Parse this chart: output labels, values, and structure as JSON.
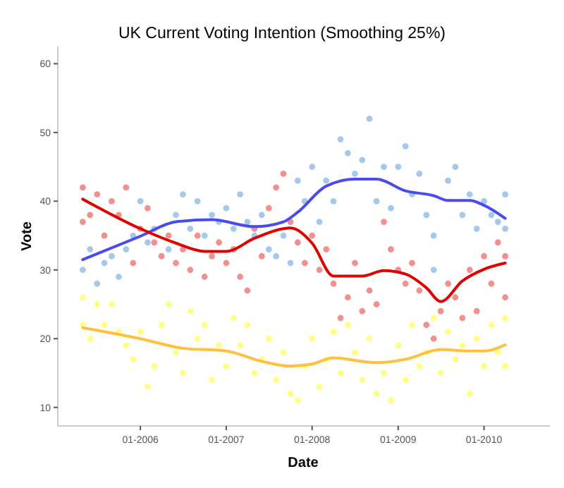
{
  "chart_data": {
    "type": "scatter",
    "title": "UK Current Voting Intention (Smoothing 25%)",
    "xlabel": "Date",
    "ylabel": "Vote",
    "xlim": [
      "2005-01-15",
      "2010-10-08"
    ],
    "ylim": [
      7.3,
      62.5
    ],
    "yticks": [
      10,
      20,
      30,
      40,
      50,
      60
    ],
    "xticks": [
      {
        "value": "2006-01",
        "label": "01-2006"
      },
      {
        "value": "2007-01",
        "label": "01-2007"
      },
      {
        "value": "2008-01",
        "label": "01-2008"
      },
      {
        "value": "2009-01",
        "label": "01-2009"
      },
      {
        "value": "2010-01",
        "label": "01-2010"
      }
    ],
    "grid": false,
    "marker": "circle",
    "series": [
      {
        "color": "#a6c8ea",
        "x": [
          "2005-05",
          "2005-06",
          "2005-07",
          "2005-08",
          "2005-09",
          "2005-10",
          "2005-11",
          "2005-12",
          "2006-01",
          "2006-02",
          "2006-03",
          "2006-05",
          "2006-06",
          "2006-07",
          "2006-08",
          "2006-09",
          "2006-10",
          "2006-11",
          "2006-12",
          "2007-01",
          "2007-02",
          "2007-03",
          "2007-04",
          "2007-05",
          "2007-06",
          "2007-07",
          "2007-08",
          "2007-09",
          "2007-10",
          "2007-11",
          "2007-12",
          "2008-01",
          "2008-02",
          "2008-03",
          "2008-04",
          "2008-05",
          "2008-06",
          "2008-07",
          "2008-08",
          "2008-09",
          "2008-10",
          "2008-11",
          "2008-12",
          "2009-01",
          "2009-02",
          "2009-03",
          "2009-04",
          "2009-05",
          "2009-06",
          "2009-06",
          "2009-08",
          "2009-09",
          "2009-10",
          "2009-11",
          "2009-12",
          "2010-01",
          "2010-02",
          "2010-03",
          "2010-04",
          "2010-04"
        ],
        "values": [
          30,
          33,
          28,
          31,
          32,
          29,
          33,
          35,
          40,
          34,
          36,
          33,
          38,
          41,
          36,
          40,
          35,
          38,
          37,
          39,
          36,
          41,
          37,
          35,
          38,
          33,
          32,
          35,
          31,
          43,
          40,
          45,
          37,
          43,
          40,
          49,
          47,
          44,
          46,
          52,
          40,
          45,
          39,
          45,
          48,
          41,
          44,
          38,
          35,
          30,
          43,
          45,
          38,
          41,
          36,
          40,
          38,
          37,
          41,
          36
        ]
      },
      {
        "color": "#f29090",
        "x": [
          "2005-05",
          "2005-05",
          "2005-06",
          "2005-07",
          "2005-08",
          "2005-09",
          "2005-10",
          "2005-11",
          "2005-12",
          "2006-01",
          "2006-02",
          "2006-03",
          "2006-04",
          "2006-05",
          "2006-06",
          "2006-07",
          "2006-08",
          "2006-09",
          "2006-10",
          "2006-11",
          "2006-12",
          "2007-01",
          "2007-02",
          "2007-03",
          "2007-04",
          "2007-05",
          "2007-06",
          "2007-07",
          "2007-08",
          "2007-09",
          "2007-10",
          "2007-11",
          "2007-12",
          "2008-01",
          "2008-02",
          "2008-03",
          "2008-04",
          "2008-05",
          "2008-06",
          "2008-07",
          "2008-08",
          "2008-09",
          "2008-10",
          "2008-11",
          "2008-12",
          "2009-01",
          "2009-02",
          "2009-03",
          "2009-04",
          "2009-05",
          "2009-06",
          "2009-07",
          "2009-08",
          "2009-09",
          "2009-10",
          "2009-11",
          "2009-12",
          "2010-01",
          "2010-02",
          "2010-03",
          "2010-04",
          "2010-04"
        ],
        "values": [
          37,
          42,
          38,
          41,
          35,
          40,
          38,
          42,
          31,
          36,
          39,
          34,
          32,
          35,
          31,
          33,
          30,
          35,
          29,
          32,
          34,
          31,
          33,
          29,
          27,
          36,
          32,
          39,
          42,
          44,
          37,
          34,
          31,
          35,
          30,
          33,
          28,
          23,
          26,
          31,
          24,
          27,
          25,
          37,
          33,
          30,
          28,
          31,
          27,
          22,
          20,
          24,
          28,
          26,
          23,
          30,
          24,
          32,
          28,
          34,
          26,
          32
        ]
      },
      {
        "color": "#ffff88",
        "x": [
          "2005-05",
          "2005-05",
          "2005-06",
          "2005-07",
          "2005-08",
          "2005-09",
          "2005-10",
          "2005-11",
          "2005-12",
          "2006-01",
          "2006-02",
          "2006-03",
          "2006-04",
          "2006-05",
          "2006-06",
          "2006-07",
          "2006-08",
          "2006-09",
          "2006-10",
          "2006-11",
          "2006-12",
          "2007-01",
          "2007-02",
          "2007-03",
          "2007-04",
          "2007-05",
          "2007-06",
          "2007-07",
          "2007-08",
          "2007-09",
          "2007-10",
          "2007-11",
          "2007-12",
          "2008-01",
          "2008-02",
          "2008-03",
          "2008-04",
          "2008-05",
          "2008-06",
          "2008-07",
          "2008-08",
          "2008-09",
          "2008-10",
          "2008-11",
          "2008-12",
          "2009-01",
          "2009-02",
          "2009-03",
          "2009-04",
          "2009-05",
          "2009-06",
          "2009-07",
          "2009-08",
          "2009-09",
          "2009-10",
          "2009-11",
          "2009-12",
          "2010-01",
          "2010-02",
          "2010-03",
          "2010-04",
          "2010-04"
        ],
        "values": [
          26,
          22,
          20,
          25,
          22,
          25,
          21,
          19,
          17,
          21,
          13,
          16,
          22,
          25,
          18,
          15,
          24,
          20,
          22,
          14,
          19,
          16,
          23,
          19,
          22,
          15,
          17,
          20,
          14,
          18,
          12,
          11,
          16,
          20,
          13,
          17,
          21,
          15,
          22,
          18,
          14,
          20,
          12,
          15,
          11,
          19,
          14,
          22,
          16,
          18,
          23,
          15,
          21,
          17,
          19,
          12,
          20,
          16,
          22,
          18,
          23,
          16
        ]
      },
      {
        "type": "line",
        "color": "#4a4af0",
        "marker": "none",
        "x": [
          "2005-05",
          "2006-01",
          "2006-06",
          "2006-11",
          "2007-05",
          "2007-09",
          "2007-11",
          "2008-03",
          "2008-07",
          "2008-10",
          "2009-02",
          "2009-06",
          "2009-08",
          "2009-11",
          "2010-01",
          "2010-04"
        ],
        "values": [
          31.5,
          34.9,
          37.0,
          37.3,
          36.3,
          37.0,
          38.4,
          42.2,
          43.2,
          43.2,
          41.5,
          40.8,
          40.1,
          40.1,
          39.4,
          37.5
        ]
      },
      {
        "type": "line",
        "color": "#e00000",
        "marker": "none",
        "x": [
          "2005-05",
          "2006-01",
          "2006-06",
          "2006-10",
          "2007-01",
          "2007-05",
          "2007-09",
          "2007-10",
          "2008-01",
          "2008-04",
          "2008-08",
          "2008-11",
          "2009-02",
          "2009-05",
          "2009-07",
          "2009-10",
          "2010-01",
          "2010-04"
        ],
        "values": [
          40.3,
          36.0,
          33.9,
          32.7,
          32.7,
          34.6,
          36.0,
          36.1,
          33.9,
          29.1,
          29.1,
          29.9,
          29.4,
          27.4,
          25.4,
          28.4,
          30.1,
          31.0
        ]
      },
      {
        "type": "line",
        "color": "#ffc040",
        "marker": "none",
        "x": [
          "2005-05",
          "2006-01",
          "2006-07",
          "2007-01",
          "2007-06",
          "2007-10",
          "2008-01",
          "2008-04",
          "2008-10",
          "2009-02",
          "2009-07",
          "2009-11",
          "2010-01",
          "2010-04"
        ],
        "values": [
          21.6,
          20.0,
          18.6,
          18.2,
          16.7,
          16.0,
          16.3,
          17.2,
          16.5,
          17.0,
          18.4,
          18.2,
          18.2,
          19.1
        ]
      }
    ]
  }
}
